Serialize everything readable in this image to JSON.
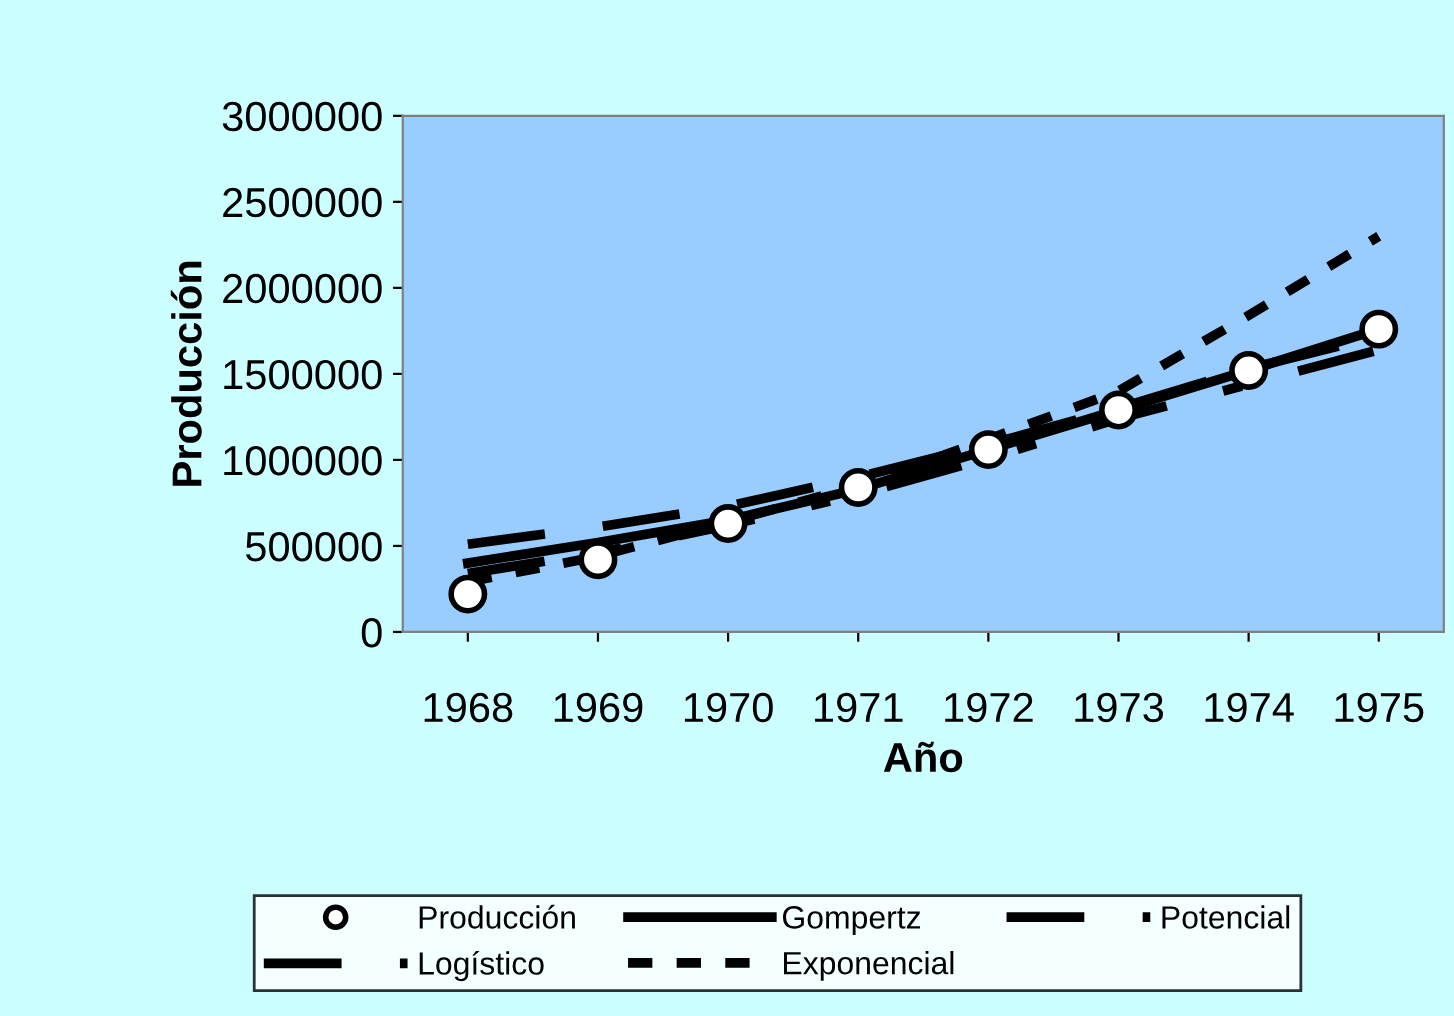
{
  "chart_data": {
    "type": "line",
    "xlabel": "Año",
    "ylabel": "Producción",
    "categories": [
      "1968",
      "1969",
      "1970",
      "1971",
      "1972",
      "1973",
      "1974",
      "1975"
    ],
    "series": [
      {
        "name": "Producción",
        "type": "scatter",
        "color": "#000000",
        "marker": "circle",
        "values": [
          220000,
          420000,
          630000,
          840000,
          1060000,
          1290000,
          1520000,
          1760000
        ]
      },
      {
        "name": "Gompertz",
        "color": "#000000",
        "line_style": "solid",
        "marker": "none",
        "values": [
          400000,
          520000,
          650000,
          830000,
          1060000,
          1290000,
          1520000,
          1760000
        ]
      },
      {
        "name": "Potencial",
        "color": "#000000",
        "line_style": "dashdot",
        "marker": "none",
        "values": [
          340000,
          460000,
          620000,
          800000,
          1010000,
          1240000,
          1440000,
          1640000
        ]
      },
      {
        "name": "Logístico",
        "color": "#000000",
        "line_style": "longdash",
        "marker": "none",
        "values": [
          510000,
          610000,
          730000,
          900000,
          1090000,
          1300000,
          1530000,
          1720000
        ]
      },
      {
        "name": "Exponencial",
        "color": "#000000",
        "line_style": "dashed",
        "marker": "none",
        "values": [
          290000,
          440000,
          640000,
          850000,
          1120000,
          1400000,
          1840000,
          2300000
        ]
      }
    ],
    "ylim": [
      0,
      3000000
    ],
    "yticks": [
      0,
      500000,
      1000000,
      1500000,
      2000000,
      2500000,
      3000000
    ],
    "grid": false,
    "legend": "bottom"
  }
}
